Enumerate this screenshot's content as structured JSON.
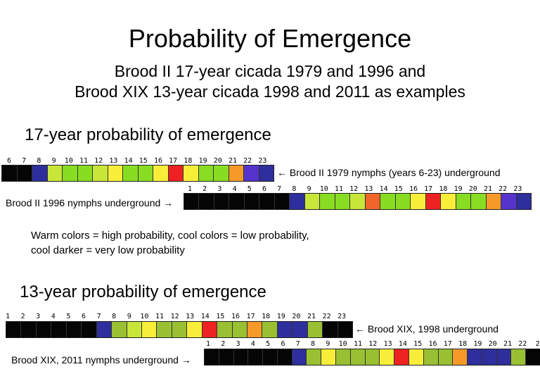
{
  "title": "Probability of Emergence",
  "subtitle_line1": "Brood II 17-year cicada 1979 and 1996 and",
  "subtitle_line2": "Brood XIX 13-year cicada 1998 and 2011 as examples",
  "colors": {
    "black": "#050505",
    "dark_blue": "#2e2e9c",
    "purple": "#5533cc",
    "green": "#88dd22",
    "olive_green": "#99c032",
    "lime": "#c8e63a",
    "yellow": "#f8ee3a",
    "orange": "#f59a28",
    "dark_orange": "#f0662a",
    "red": "#ee2222"
  },
  "section17": {
    "heading": "17-year probability of emergence",
    "row1": {
      "numbers": [
        "6",
        "7",
        "8",
        "9",
        "10",
        "11",
        "12",
        "13",
        "14",
        "15",
        "16",
        "17",
        "18",
        "19",
        "20",
        "21",
        "22",
        "23"
      ],
      "cells": [
        "black",
        "black",
        "dark_blue",
        "lime",
        "green",
        "green",
        "lime",
        "yellow",
        "green",
        "green",
        "yellow",
        "red",
        "yellow",
        "green",
        "green",
        "orange",
        "purple",
        "dark_blue"
      ],
      "label": "← Brood II 1979 nymphs (years 6-23) underground"
    },
    "row2": {
      "label": "Brood II 1996 nymphs underground →",
      "numbers": [
        "1",
        "2",
        "3",
        "4",
        "5",
        "6",
        "7",
        "8",
        "9",
        "10",
        "11",
        "12",
        "13",
        "14",
        "15",
        "16",
        "17",
        "18",
        "19",
        "20",
        "21",
        "22",
        "23"
      ],
      "cells": [
        "black",
        "black",
        "black",
        "black",
        "black",
        "black",
        "black",
        "dark_blue",
        "lime",
        "green",
        "green",
        "lime",
        "dark_orange",
        "green",
        "green",
        "yellow",
        "red",
        "yellow",
        "green",
        "green",
        "orange",
        "purple",
        "dark_blue"
      ]
    }
  },
  "legend_line1": "Warm colors = high probability, cool colors = low probability,",
  "legend_line2": "cool darker = very low probability",
  "section13": {
    "heading": "13-year probability of emergence",
    "row1": {
      "numbers": [
        "1",
        "2",
        "3",
        "4",
        "5",
        "6",
        "7",
        "8",
        "9",
        "10",
        "11",
        "12",
        "13",
        "14",
        "15",
        "16",
        "17",
        "18",
        "19",
        "20",
        "21",
        "22",
        "23"
      ],
      "cells": [
        "black",
        "black",
        "black",
        "black",
        "black",
        "black",
        "dark_blue",
        "olive_green",
        "lime",
        "yellow",
        "olive_green",
        "olive_green",
        "yellow",
        "red",
        "olive_green",
        "olive_green",
        "orange",
        "olive_green",
        "dark_blue",
        "dark_blue",
        "olive_green",
        "black",
        "black"
      ],
      "label": "← Brood XIX, 1998 underground"
    },
    "row2": {
      "label": "Brood XIX, 2011 nymphs underground →",
      "numbers": [
        "1",
        "2",
        "3",
        "4",
        "5",
        "6",
        "7",
        "8",
        "9",
        "10",
        "11",
        "12",
        "13",
        "14",
        "15",
        "16",
        "17",
        "18",
        "19",
        "20",
        "21",
        "22",
        "2"
      ],
      "cells": [
        "black",
        "black",
        "black",
        "black",
        "black",
        "black",
        "dark_blue",
        "olive_green",
        "yellow",
        "olive_green",
        "olive_green",
        "olive_green",
        "yellow",
        "red",
        "yellow",
        "olive_green",
        "olive_green",
        "orange",
        "dark_blue",
        "dark_blue",
        "dark_blue",
        "olive_green",
        "black"
      ]
    }
  }
}
